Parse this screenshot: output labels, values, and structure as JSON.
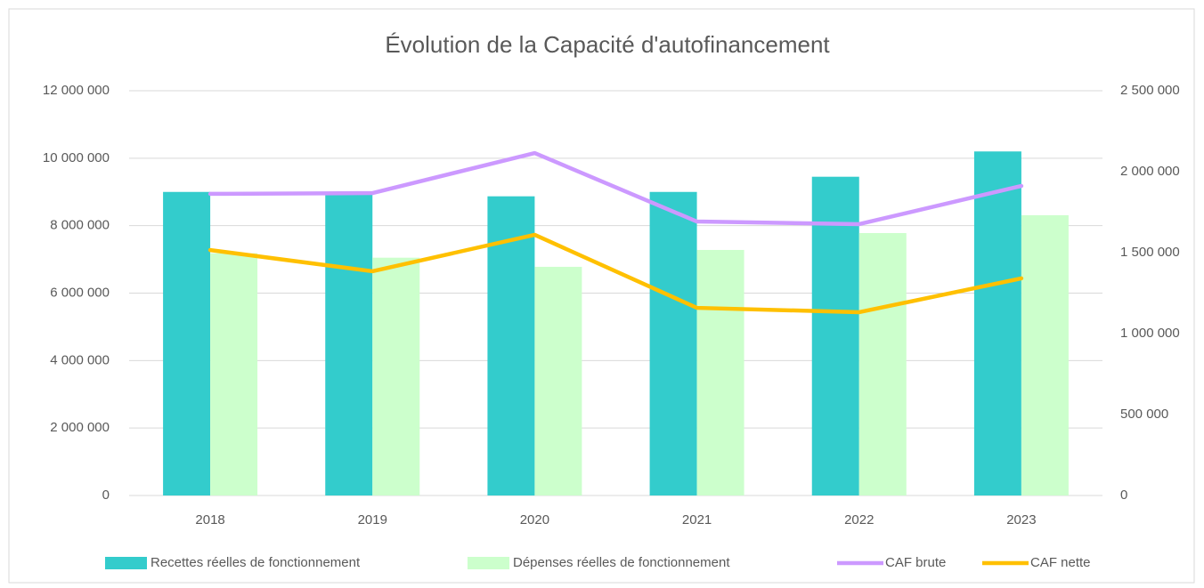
{
  "chart_data": {
    "type": "bar",
    "title": "Évolution de la Capacité d'autofinancement",
    "categories": [
      "2018",
      "2019",
      "2020",
      "2021",
      "2022",
      "2023"
    ],
    "series": [
      {
        "name": "Recettes réelles de fonctionnement",
        "color": "#33cccc",
        "type": "bar",
        "values": [
          9000000,
          8950000,
          8870000,
          9000000,
          9450000,
          10200000
        ]
      },
      {
        "name": "Dépenses réelles de fonctionnement",
        "color": "#ccffcc",
        "type": "bar",
        "values": [
          7180000,
          7050000,
          6780000,
          7280000,
          7780000,
          8310000
        ]
      },
      {
        "name": "CAF brute",
        "color": "#cc99ff",
        "type": "line",
        "axis": "y2",
        "values": [
          1863000,
          1868000,
          2115000,
          1692000,
          1676000,
          1912000
        ]
      },
      {
        "name": "CAF nette",
        "color": "#ffc000",
        "type": "line",
        "axis": "y2",
        "values": [
          1516000,
          1385000,
          1610000,
          1159000,
          1132000,
          1341000
        ]
      }
    ],
    "ylim": [
      0,
      12000000
    ],
    "yticks": [
      0,
      {
        "value": 2000000,
        "label": "2 000 000"
      },
      {
        "value": 4000000,
        "label": "4 000 000"
      },
      {
        "value": 6000000,
        "label": "6 000 000"
      },
      {
        "value": 8000000,
        "label": "8 000 000"
      },
      {
        "value": 10000000,
        "label": "10 000 000"
      },
      {
        "value": 12000000,
        "label": "12 000 000"
      }
    ],
    "y2lim": [
      0,
      2500000
    ],
    "y2ticks": [
      0,
      {
        "value": 500000,
        "label": "500 000"
      },
      {
        "value": 1000000,
        "label": "1 000 000"
      },
      {
        "value": 1500000,
        "label": "1 500 000"
      },
      {
        "value": 2000000,
        "label": "2 000 000"
      },
      {
        "value": 2500000,
        "label": "2 500 000"
      }
    ],
    "grid": true,
    "legend": "bottom"
  }
}
